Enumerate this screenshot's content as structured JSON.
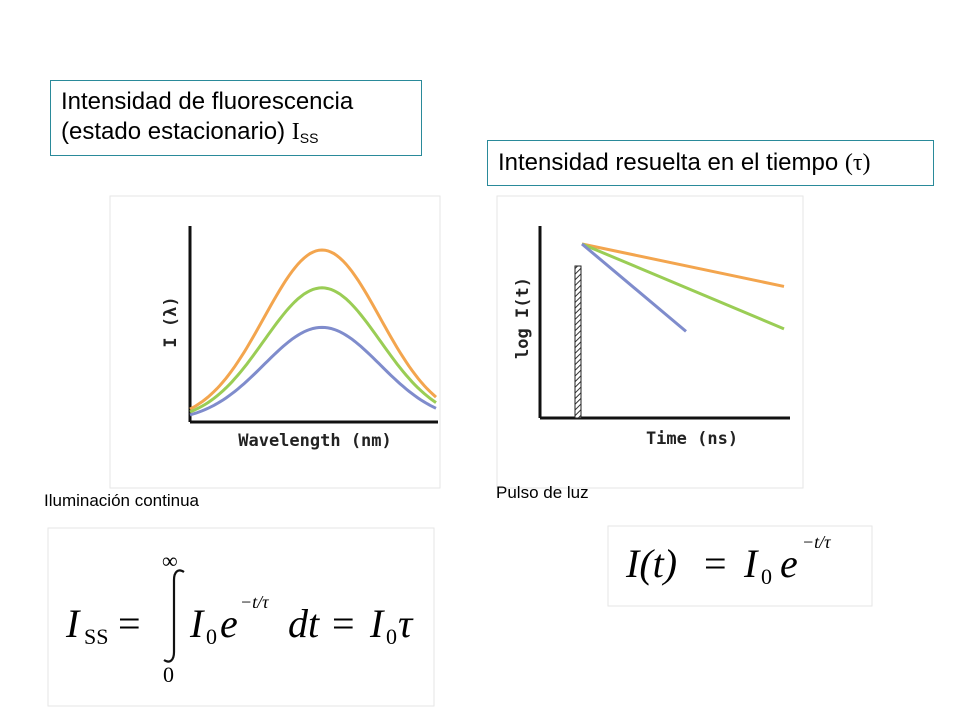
{
  "boxes": {
    "steady_state": {
      "line1": "Intensidad de fluorescencia",
      "line2": "(estado estacionario)",
      "symbol": "I",
      "symbol_sub": "SS"
    },
    "time_resolved": {
      "text": "Intensidad resuelta en el tiempo",
      "symbol": "(τ)"
    }
  },
  "captions": {
    "left": "Iluminación continua",
    "right": "Pulso de luz"
  },
  "colors": {
    "orange": "#f3a54e",
    "green": "#9acd55",
    "blue": "#7f8ccc",
    "axis": "#111111",
    "box_border": "#2a8a9a"
  },
  "chart_data": [
    {
      "type": "line",
      "xlabel": "Wavelength (nm)",
      "ylabel": "I (λ)",
      "grid": false,
      "series": [
        {
          "color": "orange",
          "peak": 1.0
        },
        {
          "color": "green",
          "peak": 0.78
        },
        {
          "color": "blue",
          "peak": 0.55
        }
      ]
    },
    {
      "type": "line",
      "xlabel": "Time (ns)",
      "ylabel": "log I(t)",
      "grid": false,
      "pulse": "light pulse bar",
      "series": [
        {
          "color": "orange",
          "slope": 0.5
        },
        {
          "color": "green",
          "slope": 1.0
        },
        {
          "color": "blue",
          "slope": 2.0
        }
      ]
    }
  ],
  "equations": {
    "left": {
      "lhs": "I",
      "lhs_sub": "SS",
      "equals": "=",
      "upper_limit": "∞",
      "lower_limit": "0",
      "integrand_I": "I",
      "integrand_sub": "0",
      "exp_base": "e",
      "exp_power": "−t/τ",
      "differential": "dt",
      "result_I": "I",
      "result_sub": "0",
      "result_tau": "τ"
    },
    "right": {
      "lhs": "I(t)",
      "equals": "=",
      "I": "I",
      "I_sub": "0",
      "exp_base": "e",
      "exp_power": "−t/τ"
    }
  }
}
